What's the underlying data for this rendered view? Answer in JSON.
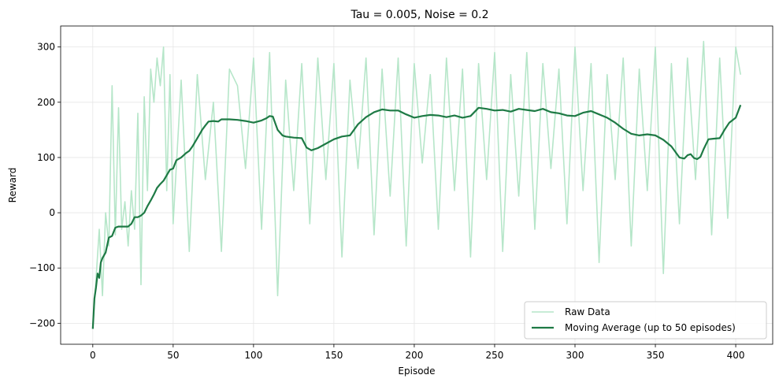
{
  "chart_data": {
    "type": "line",
    "title": "Tau = 0.005, Noise = 0.2",
    "xlabel": "Episode",
    "ylabel": "Reward",
    "xlim": [
      -20,
      423
    ],
    "ylim": [
      -238,
      338
    ],
    "xticks": [
      0,
      50,
      100,
      150,
      200,
      250,
      300,
      350,
      400
    ],
    "yticks": [
      -200,
      -100,
      0,
      100,
      200,
      300
    ],
    "xtick_labels": [
      "0",
      "50",
      "100",
      "150",
      "200",
      "250",
      "300",
      "350",
      "400"
    ],
    "ytick_labels": [
      "−200",
      "−100",
      "0",
      "100",
      "200",
      "300"
    ],
    "grid": true,
    "legend_position": "lower-right",
    "colors": {
      "raw": "#b6e6c9",
      "avg": "#1e7a45"
    },
    "series": [
      {
        "name": "Raw Data",
        "x": [
          0,
          2,
          4,
          6,
          8,
          10,
          12,
          14,
          16,
          18,
          20,
          22,
          24,
          26,
          28,
          30,
          32,
          34,
          36,
          38,
          40,
          42,
          44,
          46,
          48,
          50,
          55,
          60,
          65,
          70,
          75,
          80,
          85,
          90,
          95,
          100,
          105,
          110,
          115,
          120,
          125,
          130,
          135,
          140,
          145,
          150,
          155,
          160,
          165,
          170,
          175,
          180,
          185,
          190,
          195,
          200,
          205,
          210,
          215,
          220,
          225,
          230,
          235,
          240,
          245,
          250,
          255,
          260,
          265,
          270,
          275,
          280,
          285,
          290,
          295,
          300,
          305,
          310,
          315,
          320,
          325,
          330,
          335,
          340,
          345,
          350,
          355,
          360,
          365,
          370,
          375,
          380,
          385,
          390,
          395,
          400,
          403
        ],
        "y": [
          -210,
          -120,
          -30,
          -150,
          0,
          -60,
          230,
          -40,
          190,
          -30,
          20,
          -60,
          40,
          -30,
          180,
          -130,
          210,
          40,
          260,
          200,
          280,
          230,
          300,
          40,
          250,
          -20,
          240,
          -70,
          250,
          60,
          200,
          -70,
          260,
          230,
          80,
          280,
          -30,
          290,
          -150,
          240,
          40,
          270,
          -20,
          280,
          60,
          270,
          -80,
          240,
          80,
          280,
          -40,
          260,
          30,
          280,
          -60,
          270,
          90,
          250,
          -30,
          280,
          40,
          260,
          -80,
          270,
          60,
          290,
          -70,
          250,
          30,
          290,
          -30,
          270,
          80,
          260,
          -20,
          300,
          40,
          270,
          -90,
          250,
          60,
          280,
          -60,
          260,
          40,
          300,
          -110,
          270,
          -20,
          280,
          60,
          310,
          -40,
          280,
          -10,
          300,
          250
        ]
      },
      {
        "name": "Moving Average (up to 50 episodes)",
        "x": [
          0,
          1,
          2,
          3,
          4,
          5,
          6,
          8,
          10,
          12,
          14,
          16,
          18,
          20,
          22,
          24,
          26,
          28,
          30,
          32,
          34,
          36,
          38,
          40,
          42,
          44,
          46,
          48,
          50,
          52,
          55,
          58,
          60,
          62,
          65,
          68,
          70,
          72,
          75,
          78,
          80,
          85,
          90,
          95,
          100,
          105,
          108,
          110,
          112,
          115,
          118,
          120,
          125,
          130,
          133,
          136,
          140,
          145,
          150,
          155,
          160,
          165,
          170,
          175,
          180,
          185,
          190,
          195,
          200,
          205,
          210,
          215,
          220,
          225,
          230,
          235,
          240,
          245,
          250,
          255,
          260,
          265,
          270,
          275,
          280,
          285,
          290,
          295,
          300,
          305,
          310,
          315,
          320,
          325,
          330,
          335,
          340,
          345,
          350,
          355,
          360,
          365,
          368,
          370,
          372,
          374,
          376,
          378,
          380,
          383,
          386,
          390,
          393,
          396,
          400,
          403
        ],
        "y": [
          -210,
          -155,
          -135,
          -110,
          -118,
          -90,
          -82,
          -72,
          -45,
          -42,
          -27,
          -25,
          -25,
          -25,
          -25,
          -20,
          -8,
          -8,
          -5,
          0,
          12,
          22,
          33,
          45,
          52,
          58,
          68,
          78,
          80,
          95,
          100,
          108,
          112,
          120,
          135,
          150,
          158,
          165,
          166,
          165,
          169,
          169,
          168,
          166,
          163,
          167,
          171,
          175,
          174,
          150,
          140,
          138,
          136,
          135,
          118,
          113,
          117,
          125,
          133,
          138,
          140,
          160,
          173,
          182,
          187,
          185,
          185,
          178,
          172,
          175,
          177,
          176,
          173,
          176,
          172,
          175,
          190,
          188,
          185,
          186,
          183,
          188,
          186,
          184,
          188,
          182,
          180,
          176,
          175,
          181,
          184,
          178,
          172,
          163,
          152,
          143,
          140,
          142,
          140,
          132,
          120,
          100,
          98,
          104,
          106,
          99,
          97,
          101,
          115,
          133,
          134,
          135,
          150,
          163,
          172,
          195
        ]
      }
    ]
  }
}
